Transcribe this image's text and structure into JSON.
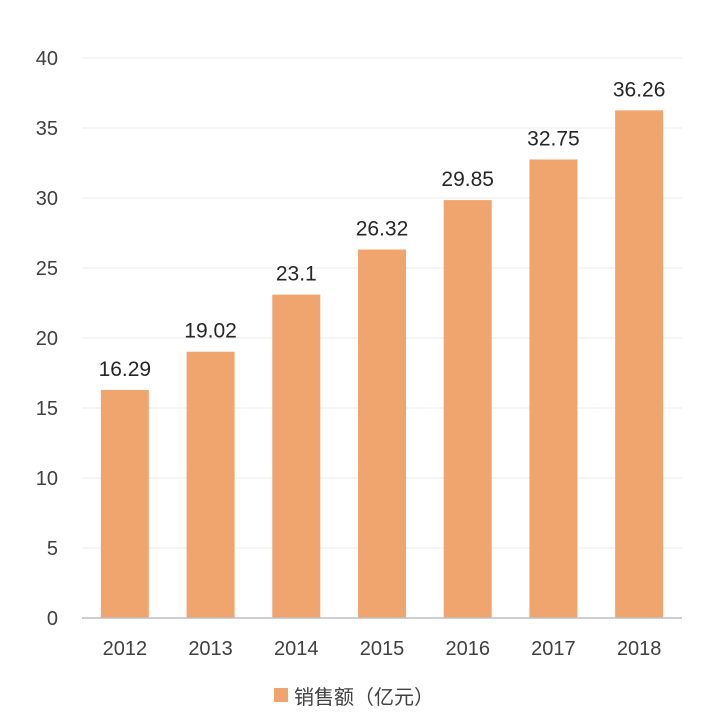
{
  "chart_data": {
    "type": "bar",
    "categories": [
      "2012",
      "2013",
      "2014",
      "2015",
      "2016",
      "2017",
      "2018"
    ],
    "series": [
      {
        "name": "销售额（亿元）",
        "values": [
          16.29,
          19.02,
          23.1,
          26.32,
          29.85,
          32.75,
          36.26
        ]
      }
    ],
    "data_labels": [
      "16.29",
      "19.02",
      "23.1",
      "26.32",
      "29.85",
      "32.75",
      "36.26"
    ],
    "ylim": [
      0,
      40
    ],
    "yticks": [
      0,
      5,
      10,
      15,
      20,
      25,
      30,
      35,
      40
    ],
    "grid": true,
    "legend_position": "bottom",
    "colors": {
      "bar": "#F0A56F",
      "grid": "#EBEBEB",
      "axis": "#BFBFBF"
    }
  }
}
